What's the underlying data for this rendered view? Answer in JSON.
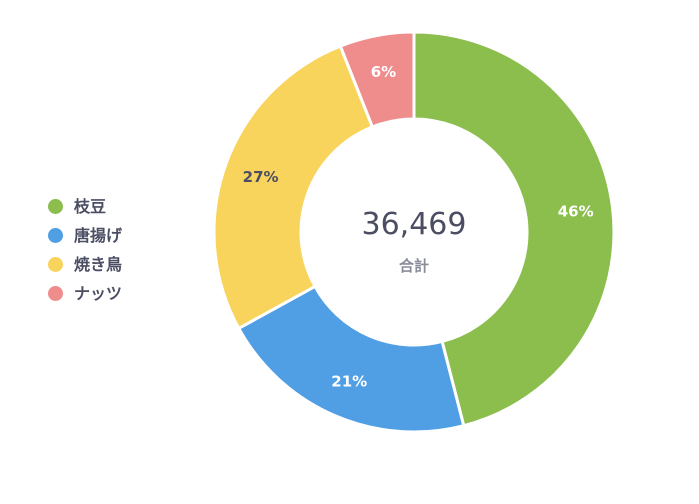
{
  "chart_data": {
    "type": "pie",
    "categories": [
      "枝豆",
      "唐揚げ",
      "焼き鳥",
      "ナッツ"
    ],
    "values": [
      46,
      21,
      27,
      6
    ],
    "value_labels": [
      "46%",
      "21%",
      "27%",
      "6%"
    ],
    "colors": [
      "#8bbe4d",
      "#509ee3",
      "#f9d45c",
      "#ef8c8c"
    ],
    "label_colors": [
      "#ffffff",
      "#ffffff",
      "#4b4e63",
      "#ffffff"
    ],
    "legend_position": "left",
    "donut": true,
    "center": {
      "total": "36,469",
      "caption": "合計"
    }
  }
}
